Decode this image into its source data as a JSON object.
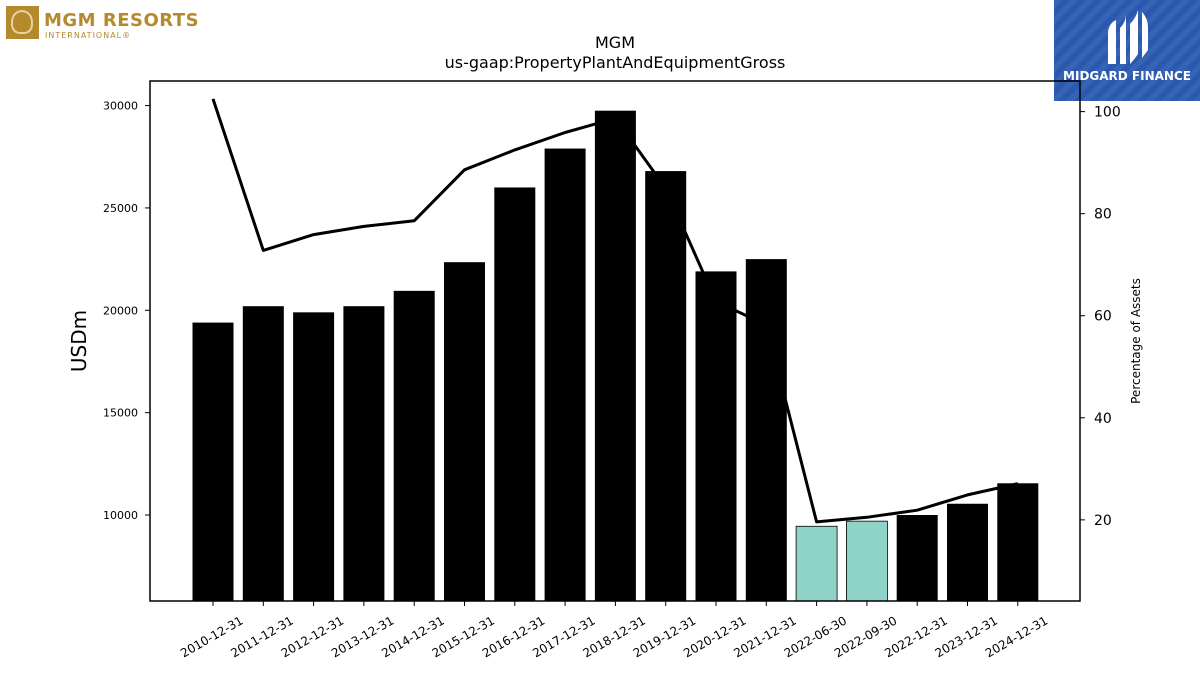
{
  "logos": {
    "left": {
      "name": "MGM RESORTS",
      "sub": "INTERNATIONAL®"
    },
    "right": {
      "name": "MIDGARD FINANCE"
    }
  },
  "colors": {
    "bar": "#000000",
    "bar_highlight": "#8fd3c8",
    "line": "#000000",
    "logo_gold": "#b48a2c",
    "logo_blue": "#2b59b0"
  },
  "chart_data": {
    "type": "bar",
    "title": "MGM",
    "subtitle": "us-gaap:PropertyPlantAndEquipmentGross",
    "ylabel": "USDm",
    "y2label": "Percentage of Assets",
    "ylim": [
      5800,
      31200
    ],
    "y2lim": [
      4.1,
      106
    ],
    "yticks": [
      10000,
      15000,
      20000,
      25000,
      30000
    ],
    "y2ticks": [
      20,
      40,
      60,
      80,
      100
    ],
    "grid": false,
    "categories": [
      "2010-12-31",
      "2011-12-31",
      "2012-12-31",
      "2013-12-31",
      "2014-12-31",
      "2015-12-31",
      "2016-12-31",
      "2017-12-31",
      "2018-12-31",
      "2019-12-31",
      "2020-12-31",
      "2021-12-31",
      "2022-06-30",
      "2022-09-30",
      "2022-12-31",
      "2023-12-31",
      "2024-12-31"
    ],
    "values": [
      19400,
      20200,
      19900,
      20200,
      20950,
      22350,
      26000,
      27900,
      29750,
      26800,
      21900,
      22500,
      9450,
      9700,
      10000,
      10550,
      11550
    ],
    "highlight": [
      false,
      false,
      false,
      false,
      false,
      false,
      false,
      false,
      false,
      false,
      false,
      false,
      true,
      true,
      false,
      false,
      false
    ],
    "line_values": [
      102.5,
      72.8,
      75.9,
      77.5,
      78.6,
      88.6,
      92.5,
      95.9,
      98.7,
      85.0,
      62.8,
      58.2,
      19.6,
      20.5,
      21.9,
      24.9,
      27.1
    ]
  }
}
